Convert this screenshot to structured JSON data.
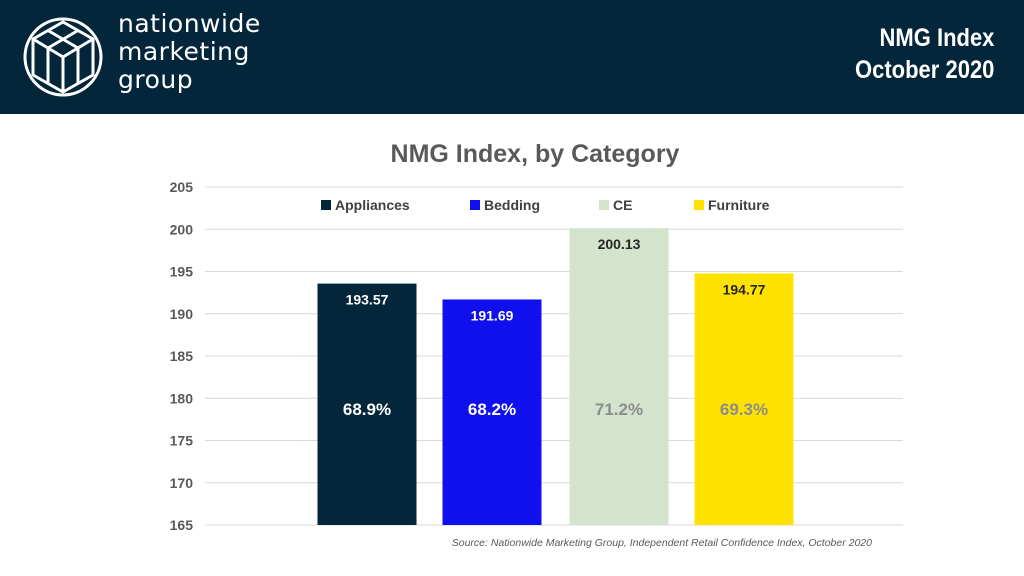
{
  "header": {
    "logo_lines": [
      "nationwide",
      "marketing",
      "group"
    ],
    "title_line1": "NMG Index",
    "title_line2": "October 2020"
  },
  "colors": {
    "header_bg": "#03263b",
    "appliances": "#03263b",
    "bedding": "#1010ee",
    "ce": "#d3e3cc",
    "furniture": "#ffe200"
  },
  "chart_data": {
    "type": "bar",
    "title": "NMG Index, by Category",
    "xlabel": "",
    "ylabel": "",
    "ylim": [
      165,
      205
    ],
    "yticks": [
      165,
      170,
      175,
      180,
      185,
      190,
      195,
      200,
      205
    ],
    "grid": true,
    "legend_position": "top",
    "series": [
      {
        "name": "Appliances",
        "value": 193.57,
        "value_label": "193.57",
        "share_label": "68.9%",
        "color": "#03263b",
        "label_color": "#ffffff"
      },
      {
        "name": "Bedding",
        "value": 191.69,
        "value_label": "191.69",
        "share_label": "68.2%",
        "color": "#1010ee",
        "label_color": "#ffffff"
      },
      {
        "name": "CE",
        "value": 200.13,
        "value_label": "200.13",
        "share_label": "71.2%",
        "color": "#d3e3cc",
        "label_color": "#262626",
        "share_color": "#8c8c8c"
      },
      {
        "name": "Furniture",
        "value": 194.77,
        "value_label": "194.77",
        "share_label": "69.3%",
        "color": "#ffe200",
        "label_color": "#262626",
        "share_color": "#8c8c8c"
      }
    ],
    "source": "Source: Nationwide Marketing Group, Independent Retail Confidence Index, October 2020"
  }
}
